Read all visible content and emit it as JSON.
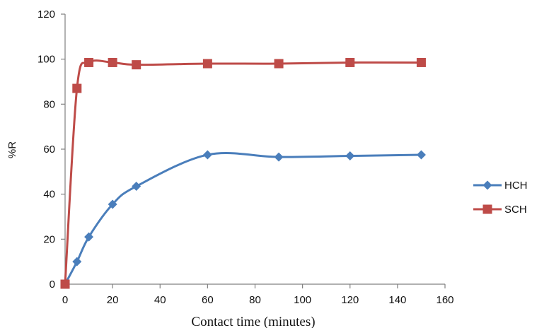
{
  "chart_data": {
    "type": "line",
    "title": "",
    "xlabel": "Contact time (minutes)",
    "ylabel": "%R",
    "xlim": [
      0,
      160
    ],
    "ylim": [
      0,
      120
    ],
    "xticks": [
      0,
      20,
      40,
      60,
      80,
      100,
      120,
      140,
      160
    ],
    "yticks": [
      0,
      20,
      40,
      60,
      80,
      100,
      120
    ],
    "grid": false,
    "legend_position": "right",
    "smooth": true,
    "series": [
      {
        "name": "HCH",
        "color": "#4A7EBB",
        "marker": "diamond",
        "x": [
          0,
          5,
          10,
          20,
          30,
          60,
          90,
          120,
          150
        ],
        "y": [
          0,
          10,
          21,
          35.5,
          43.5,
          57.5,
          56.5,
          57,
          57.5
        ]
      },
      {
        "name": "SCH",
        "color": "#BE4B48",
        "marker": "square",
        "x": [
          0,
          5,
          10,
          20,
          30,
          60,
          90,
          120,
          150
        ],
        "y": [
          0,
          87,
          98.5,
          98.5,
          97.5,
          98,
          98,
          98.5,
          98.5
        ]
      }
    ]
  }
}
